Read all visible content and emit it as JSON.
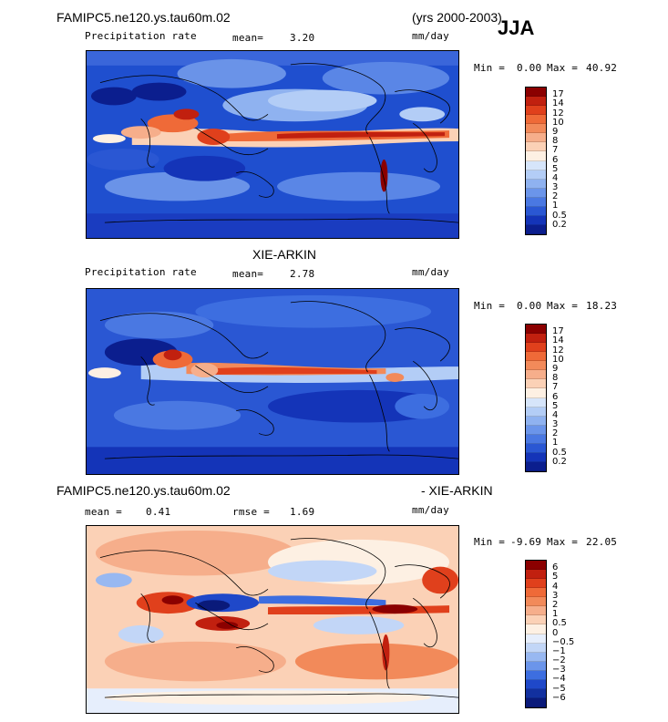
{
  "season": "JJA",
  "panels": [
    {
      "title_left": "FAMIPC5.ne120.ys.tau60m.02",
      "title_right": "(yrs 2000-2003)",
      "field": "Precipitation rate",
      "stat1_label": "mean=",
      "stat1_value": "3.20",
      "units": "mm/day",
      "min_label": "Min =",
      "min_value": "0.00",
      "max_label": "Max =",
      "max_value": "40.92",
      "levels": [
        "17",
        "14",
        "12",
        "10",
        "9",
        "8",
        "7",
        "6",
        "5",
        "4",
        "3",
        "2",
        "1",
        "0.5",
        "0.2"
      ],
      "colors": [
        "#8b0000",
        "#c1200f",
        "#e0401c",
        "#ef6a38",
        "#f28a5a",
        "#f6ae8b",
        "#fbd1b6",
        "#fdf0e3",
        "#d6e5fa",
        "#b3cdf6",
        "#8fb2f0",
        "#6b95ea",
        "#4a78e2",
        "#2a57d3",
        "#1434b8",
        "#0b1e8e"
      ]
    },
    {
      "title_center": "XIE-ARKIN",
      "field": "Precipitation rate",
      "stat1_label": "mean=",
      "stat1_value": "2.78",
      "units": "mm/day",
      "min_label": "Min =",
      "min_value": "0.00",
      "max_label": "Max =",
      "max_value": "18.23",
      "levels": [
        "17",
        "14",
        "12",
        "10",
        "9",
        "8",
        "7",
        "6",
        "5",
        "4",
        "3",
        "2",
        "1",
        "0.5",
        "0.2"
      ],
      "colors": [
        "#8b0000",
        "#c1200f",
        "#e0401c",
        "#ef6a38",
        "#f28a5a",
        "#f6ae8b",
        "#fbd1b6",
        "#fdf0e3",
        "#d6e5fa",
        "#b3cdf6",
        "#8fb2f0",
        "#6b95ea",
        "#4a78e2",
        "#2a57d3",
        "#1434b8",
        "#0b1e8e"
      ]
    },
    {
      "title_left": "FAMIPC5.ne120.ys.tau60m.02",
      "title_right": "- XIE-ARKIN",
      "stat1_label": "mean =",
      "stat1_value": "0.41",
      "stat2_label": "rmse =",
      "stat2_value": "1.69",
      "units": "mm/day",
      "min_label": "Min =",
      "min_value": "-9.69",
      "max_label": "Max =",
      "max_value": "22.05",
      "levels": [
        "6",
        "5",
        "4",
        "3",
        "2",
        "1",
        "0.5",
        "0",
        "−0.5",
        "−1",
        "−2",
        "−3",
        "−4",
        "−5",
        "−6"
      ],
      "colors": [
        "#8b0000",
        "#c1200f",
        "#e0401c",
        "#ef6a38",
        "#f28a5a",
        "#f6ae8b",
        "#fbd1b6",
        "#fdf0e3",
        "#e6eefc",
        "#c2d6f7",
        "#98b8f1",
        "#6b95ea",
        "#3d6ee0",
        "#1f48c9",
        "#12309f",
        "#0a1a7a"
      ]
    }
  ]
}
